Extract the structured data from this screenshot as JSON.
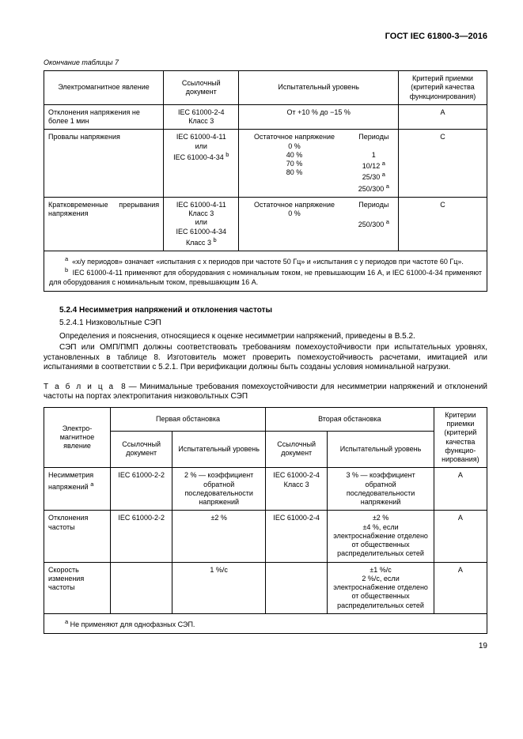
{
  "doc_id": "ГОСТ IEC 61800-3—2016",
  "cont_label": "Окончание таблицы 7",
  "table7": {
    "headers": [
      "Электромагнитное явление",
      "Ссылочный документ",
      "Испытательный уровень",
      "Критерий приемки (критерий качества функционирования)"
    ],
    "rows": [
      {
        "phenomenon": "Отклонения напряжения не более 1 мин",
        "ref": "IEC 61000-2-4\nКласс 3",
        "level_span": "От +10 % до −15 %",
        "criterion": "A"
      },
      {
        "phenomenon": "Провалы напряжения",
        "ref": "IEC 61000-4-11\nили\nIEC 61000-4-34",
        "ref_sup": "b",
        "level_col1_label": "Остаточное напряжение",
        "level_col1_vals": [
          "0 %",
          "40 %",
          "70 %",
          "80 %"
        ],
        "level_col2_label": "Периоды",
        "level_col2_vals": [
          "1",
          "10/12",
          "25/30",
          "250/300"
        ],
        "level_col2_sup": "a",
        "criterion": "C"
      },
      {
        "phenomenon": "Кратковременные прерывания напряжения",
        "ref": "IEC 61000-4-11\nКласс 3\nили\nIEC 61000-4-34\nКласс 3",
        "ref_sup": "b",
        "level_col1_label": "Остаточное напряжение",
        "level_col1_vals": [
          "0 %"
        ],
        "level_col2_label": "Периоды",
        "level_col2_vals": [
          "250/300"
        ],
        "level_col2_sup": "a",
        "criterion": "C"
      }
    ],
    "footnote_a": "«x/y периодов» означает «испытания с x периодов при частоте 50 Гц» и «испытания с y периодов при частоте 60 Гц».",
    "footnote_b": "IEC 61000-4-11 применяют для оборудования с номинальным током, не превышающим 16 А, и IEC 61000-4-34 применяют для оборудования с номинальным током, превышающим 16 А."
  },
  "section": {
    "num": "5.2.4",
    "title": "Несимметрия напряжений и отклонения частоты",
    "sub_num": "5.2.4.1",
    "sub_title": "Низковольтные СЭП",
    "para1": "Определения и пояснения, относящиеся к оценке несимметрии напряжений, приведены в B.5.2.",
    "para2": "СЭП или ОМП/ПМП должны соответствовать требованиям помехоустойчивости при испытательных уровнях, установленных в таблице 8. Изготовитель может проверить помехоустойчивость расчетами, имитацией или испытаниями в соответствии с 5.2.1. При верификации должны быть созданы условия номинальной нагрузки."
  },
  "table8_caption_prefix": "Т а б л и ц а",
  "table8_caption": "8 — Минимальные требования помехоустойчивости для несимметрии напряжений и отклонений частоты на портах электропитания низковольтных СЭП",
  "table8": {
    "env1": "Первая обстановка",
    "env2": "Вторая обстановка",
    "col_phenom": "Электро-\nмагнитное\nявление",
    "col_ref": "Ссылочный документ",
    "col_level": "Испытательный уровень",
    "col_crit": "Критерии приемки (критерий качества функцио-\nнирования)",
    "rows": [
      {
        "phenom": "Несимметрия напряжений",
        "phenom_sup": "a",
        "ref1": "IEC 61000-2-2",
        "lvl1": "2 % — коэффициент обратной последовательности напряжений",
        "ref2": "IEC 61000-2-4\nКласс 3",
        "lvl2": "3 % — коэффициент обратной последовательности напряжений",
        "crit": "A"
      },
      {
        "phenom": "Отклонения частоты",
        "ref1": "IEC 61000-2-2",
        "lvl1": "±2 %",
        "ref2": "IEC 61000-2-4",
        "lvl2": "±2 %\n±4 %, если электроснабжение отделено от общественных распределительных сетей",
        "crit": "A"
      },
      {
        "phenom": "Скорость изменения частоты",
        "ref1": "",
        "lvl1": "1 %/с",
        "ref2": "",
        "lvl2": "±1 %/с\n2 %/с, если электроснабжение отделено от общественных распределительных сетей",
        "crit": "A"
      }
    ],
    "footnote_a": "Не применяют для однофазных СЭП."
  },
  "page": "19"
}
